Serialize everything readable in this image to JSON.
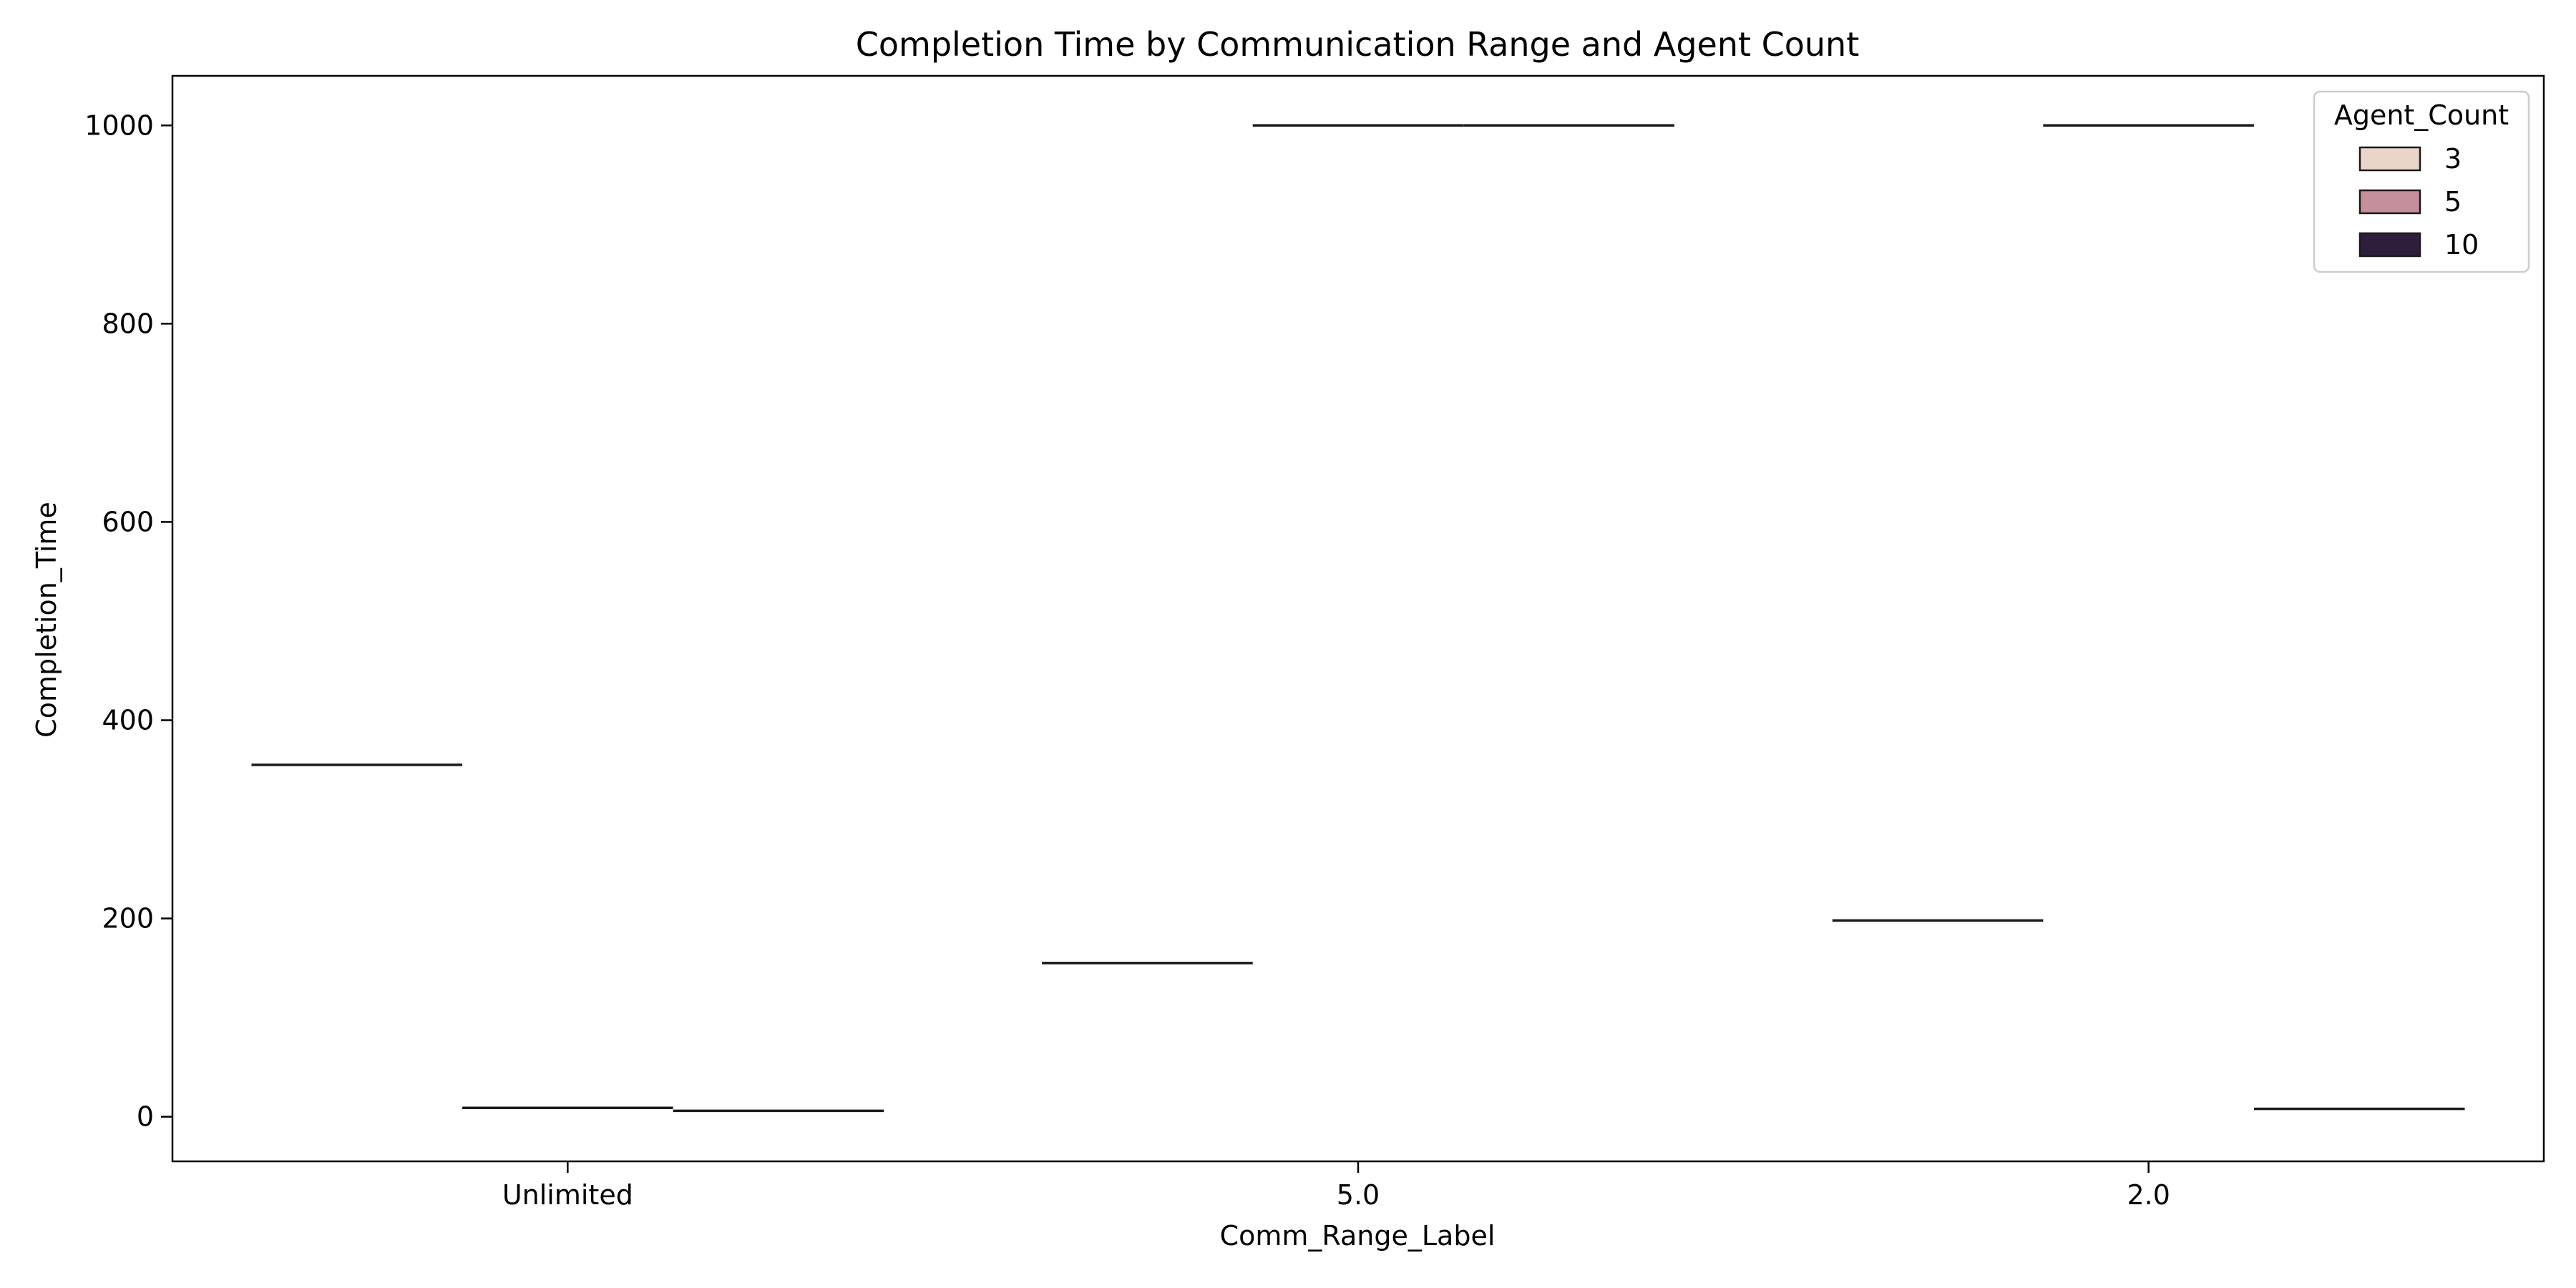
{
  "chart_data": {
    "type": "box",
    "title": "Completion Time by Communication Range and Agent Count",
    "xlabel": "Comm_Range_Label",
    "ylabel": "Completion_Time",
    "categories": [
      "Unlimited",
      "5.0",
      "2.0"
    ],
    "ylim": [
      -45,
      1050
    ],
    "yticks": [
      0,
      200,
      400,
      600,
      800,
      1000
    ],
    "legend": {
      "title": "Agent_Count",
      "placement": "top-right"
    },
    "series": [
      {
        "name": "3",
        "color": "#ecd4cb",
        "values": [
          355,
          155,
          198
        ]
      },
      {
        "name": "5",
        "color": "#c48e9b",
        "values": [
          9,
          1000,
          1000
        ]
      },
      {
        "name": "10",
        "color": "#2d1e3e",
        "values": [
          6,
          1000,
          8
        ]
      }
    ]
  }
}
